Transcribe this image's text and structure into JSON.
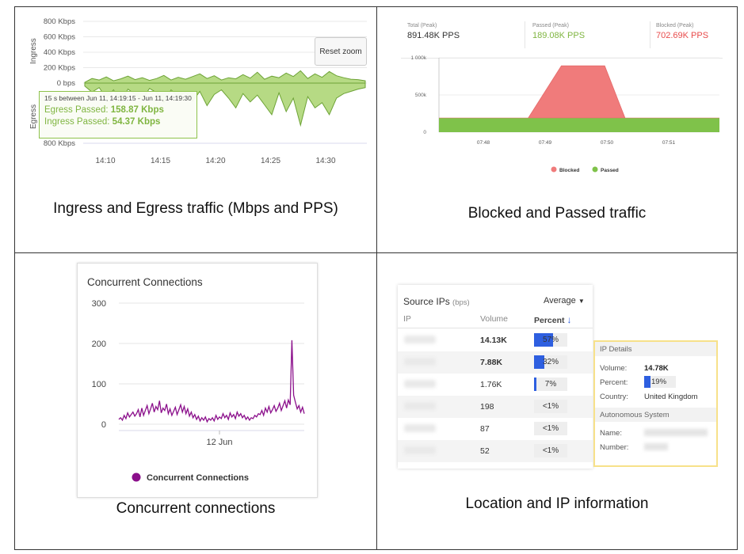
{
  "chart_data": [
    {
      "type": "area",
      "panel": "ingress-egress",
      "ylabels_top": [
        "800 Kbps",
        "600 Kbps",
        "400 Kbps",
        "200 Kbps",
        "0 bps"
      ],
      "ylabels_bottom": [
        "800 Kbps"
      ],
      "axis_title_top": "Ingress",
      "axis_title_bottom": "Egress",
      "x_ticks": [
        "14:10",
        "14:15",
        "14:20",
        "14:25",
        "14:30"
      ],
      "ylim": [
        -800,
        800
      ],
      "series": [
        {
          "name": "Ingress Passed",
          "values": [
            10,
            60,
            40,
            80,
            30,
            55,
            90,
            45,
            70,
            35,
            60,
            100,
            40,
            75,
            50,
            85,
            120,
            60,
            95,
            40,
            70,
            55,
            110,
            65,
            140,
            50,
            90,
            70,
            130,
            85,
            160,
            60,
            120,
            75,
            150,
            95,
            70,
            50,
            45,
            30
          ]
        },
        {
          "name": "Egress Passed",
          "values": [
            -40,
            -120,
            -60,
            -200,
            -90,
            -250,
            -80,
            -150,
            -220,
            -70,
            -130,
            -260,
            -90,
            -180,
            -120,
            -240,
            -110,
            -300,
            -150,
            -90,
            -200,
            -330,
            -140,
            -250,
            -160,
            -290,
            -420,
            -130,
            -380,
            -200,
            -560,
            -180,
            -330,
            -260,
            -420,
            -200,
            -140,
            -110,
            -80,
            -60
          ]
        }
      ],
      "color": "#8ec24b",
      "reset_zoom": "Reset zoom",
      "tooltip": {
        "title": "15 s between Jun 11, 14:19:15 - Jun 11, 14:19:30",
        "egress_label": "Egress Passed:",
        "egress_value": "158.87 Kbps",
        "ingress_label": "Ingress Passed:",
        "ingress_value": "54.37 Kbps"
      }
    },
    {
      "type": "area",
      "panel": "blocked-passed",
      "stats": [
        {
          "label": "Total (Peak)",
          "value": "891.48K PPS",
          "color": "#333333"
        },
        {
          "label": "Passed (Peak)",
          "value": "189.08K PPS",
          "color": "#7fb540"
        },
        {
          "label": "Blocked (Peak)",
          "value": "702.69K PPS",
          "color": "#e84b4b"
        }
      ],
      "y_ticks": [
        "1 000k",
        "500k",
        "0"
      ],
      "ylim": [
        0,
        1000000
      ],
      "x_ticks": [
        "07:48",
        "07:49",
        "07:50",
        "07:51"
      ],
      "x": [
        0,
        0.35,
        0.48,
        0.57,
        0.65,
        0.73,
        1.1
      ],
      "series": [
        {
          "name": "Blocked",
          "color": "#f07b7b",
          "values": [
            0,
            0,
            702690,
            702690,
            702690,
            0,
            0
          ]
        },
        {
          "name": "Passed",
          "color": "#7fc24a",
          "values": [
            189080,
            189080,
            189080,
            189080,
            189080,
            189080,
            189080
          ]
        }
      ],
      "legend": [
        "Blocked",
        "Passed"
      ]
    },
    {
      "type": "line",
      "panel": "concurrent-connections",
      "title": "Concurrent Connections",
      "y_ticks": [
        "300",
        "200",
        "100",
        "0"
      ],
      "ylim": [
        0,
        300
      ],
      "x_ticks": [
        "12 Jun"
      ],
      "series": [
        {
          "name": "Concurrent Connections",
          "color": "#8b0f8b",
          "values": [
            12,
            16,
            10,
            22,
            14,
            28,
            18,
            24,
            30,
            20,
            26,
            36,
            18,
            40,
            22,
            34,
            46,
            26,
            38,
            52,
            30,
            44,
            36,
            58,
            28,
            40,
            34,
            50,
            26,
            38,
            22,
            32,
            42,
            24,
            36,
            48,
            30,
            44,
            26,
            38,
            20,
            30,
            16,
            24,
            12,
            20,
            8,
            16,
            10,
            18,
            6,
            14,
            10,
            16,
            8,
            22,
            12,
            18,
            14,
            26,
            16,
            22,
            12,
            28,
            18,
            24,
            14,
            30,
            20,
            26,
            16,
            22,
            12,
            18,
            10,
            16,
            14,
            22,
            18,
            26,
            24,
            34,
            22,
            40,
            30,
            44,
            28,
            36,
            46,
            32,
            40,
            52,
            34,
            46,
            58,
            40,
            60,
            48,
            208,
            72,
            54,
            38,
            46,
            30,
            42,
            26
          ]
        }
      ],
      "legend": [
        "Concurrent Connections"
      ]
    },
    {
      "type": "table",
      "panel": "source-ips",
      "title": "Source IPs",
      "title_unit": "(bps)",
      "dropdown": "Average",
      "columns": [
        "IP",
        "Volume",
        "Percent"
      ],
      "rows": [
        {
          "volume": "14.13K",
          "percent_text": "57%",
          "percent": 57,
          "bold": true
        },
        {
          "volume": "7.88K",
          "percent_text": "32%",
          "percent": 32,
          "bold": true
        },
        {
          "volume": "1.76K",
          "percent_text": "7%",
          "percent": 7,
          "bold": false
        },
        {
          "volume": "198",
          "percent_text": "<1%",
          "percent": 0,
          "bold": false
        },
        {
          "volume": "87",
          "percent_text": "<1%",
          "percent": 0,
          "bold": false
        },
        {
          "volume": "52",
          "percent_text": "<1%",
          "percent": 0,
          "bold": false
        }
      ],
      "details": {
        "header": "IP Details",
        "volume_label": "Volume:",
        "volume_value": "14.78K",
        "percent_label": "Percent:",
        "percent_text": "19%",
        "percent": 19,
        "country_label": "Country:",
        "country_value": "United Kingdom",
        "as_header": "Autonomous System",
        "name_label": "Name:",
        "number_label": "Number:"
      }
    }
  ],
  "captions": {
    "q1": "Ingress and Egress traffic (Mbps and PPS)",
    "q2": "Blocked and Passed traffic",
    "q3": "Concurrent connections",
    "q4": "Location and IP information"
  },
  "accent": "#2e5fe0"
}
